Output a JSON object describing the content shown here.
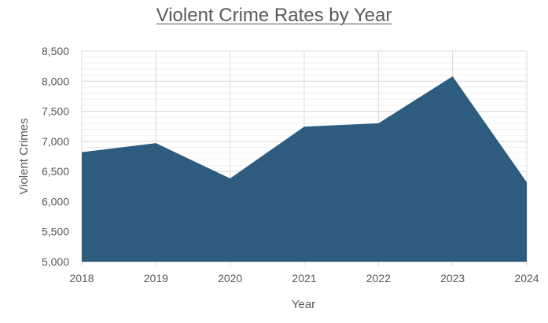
{
  "chart_data": {
    "type": "area",
    "title": "Violent Crime Rates by Year",
    "xlabel": "Year",
    "ylabel": "Violent Crimes",
    "categories": [
      "2018",
      "2019",
      "2020",
      "2021",
      "2022",
      "2023",
      "2024"
    ],
    "series": [
      {
        "name": "Violent Crimes",
        "color": "#2e5c7f",
        "values": [
          6820,
          6970,
          6385,
          7245,
          7300,
          8080,
          6320
        ]
      }
    ],
    "ylim": [
      5000,
      8500
    ],
    "yticks": [
      5000,
      5500,
      6000,
      6500,
      7000,
      7500,
      8000,
      8500
    ],
    "ytick_labels": [
      "5,000",
      "5,500",
      "6,000",
      "6,500",
      "7,000",
      "7,500",
      "8,000",
      "8,500"
    ],
    "y_minor_step": 100,
    "grid": true,
    "legend": "none"
  },
  "colors": {
    "fill": "#2e5c7f",
    "grid_major": "#d9d9d9",
    "grid_minor": "#f0f0f0",
    "text": "#595959"
  }
}
